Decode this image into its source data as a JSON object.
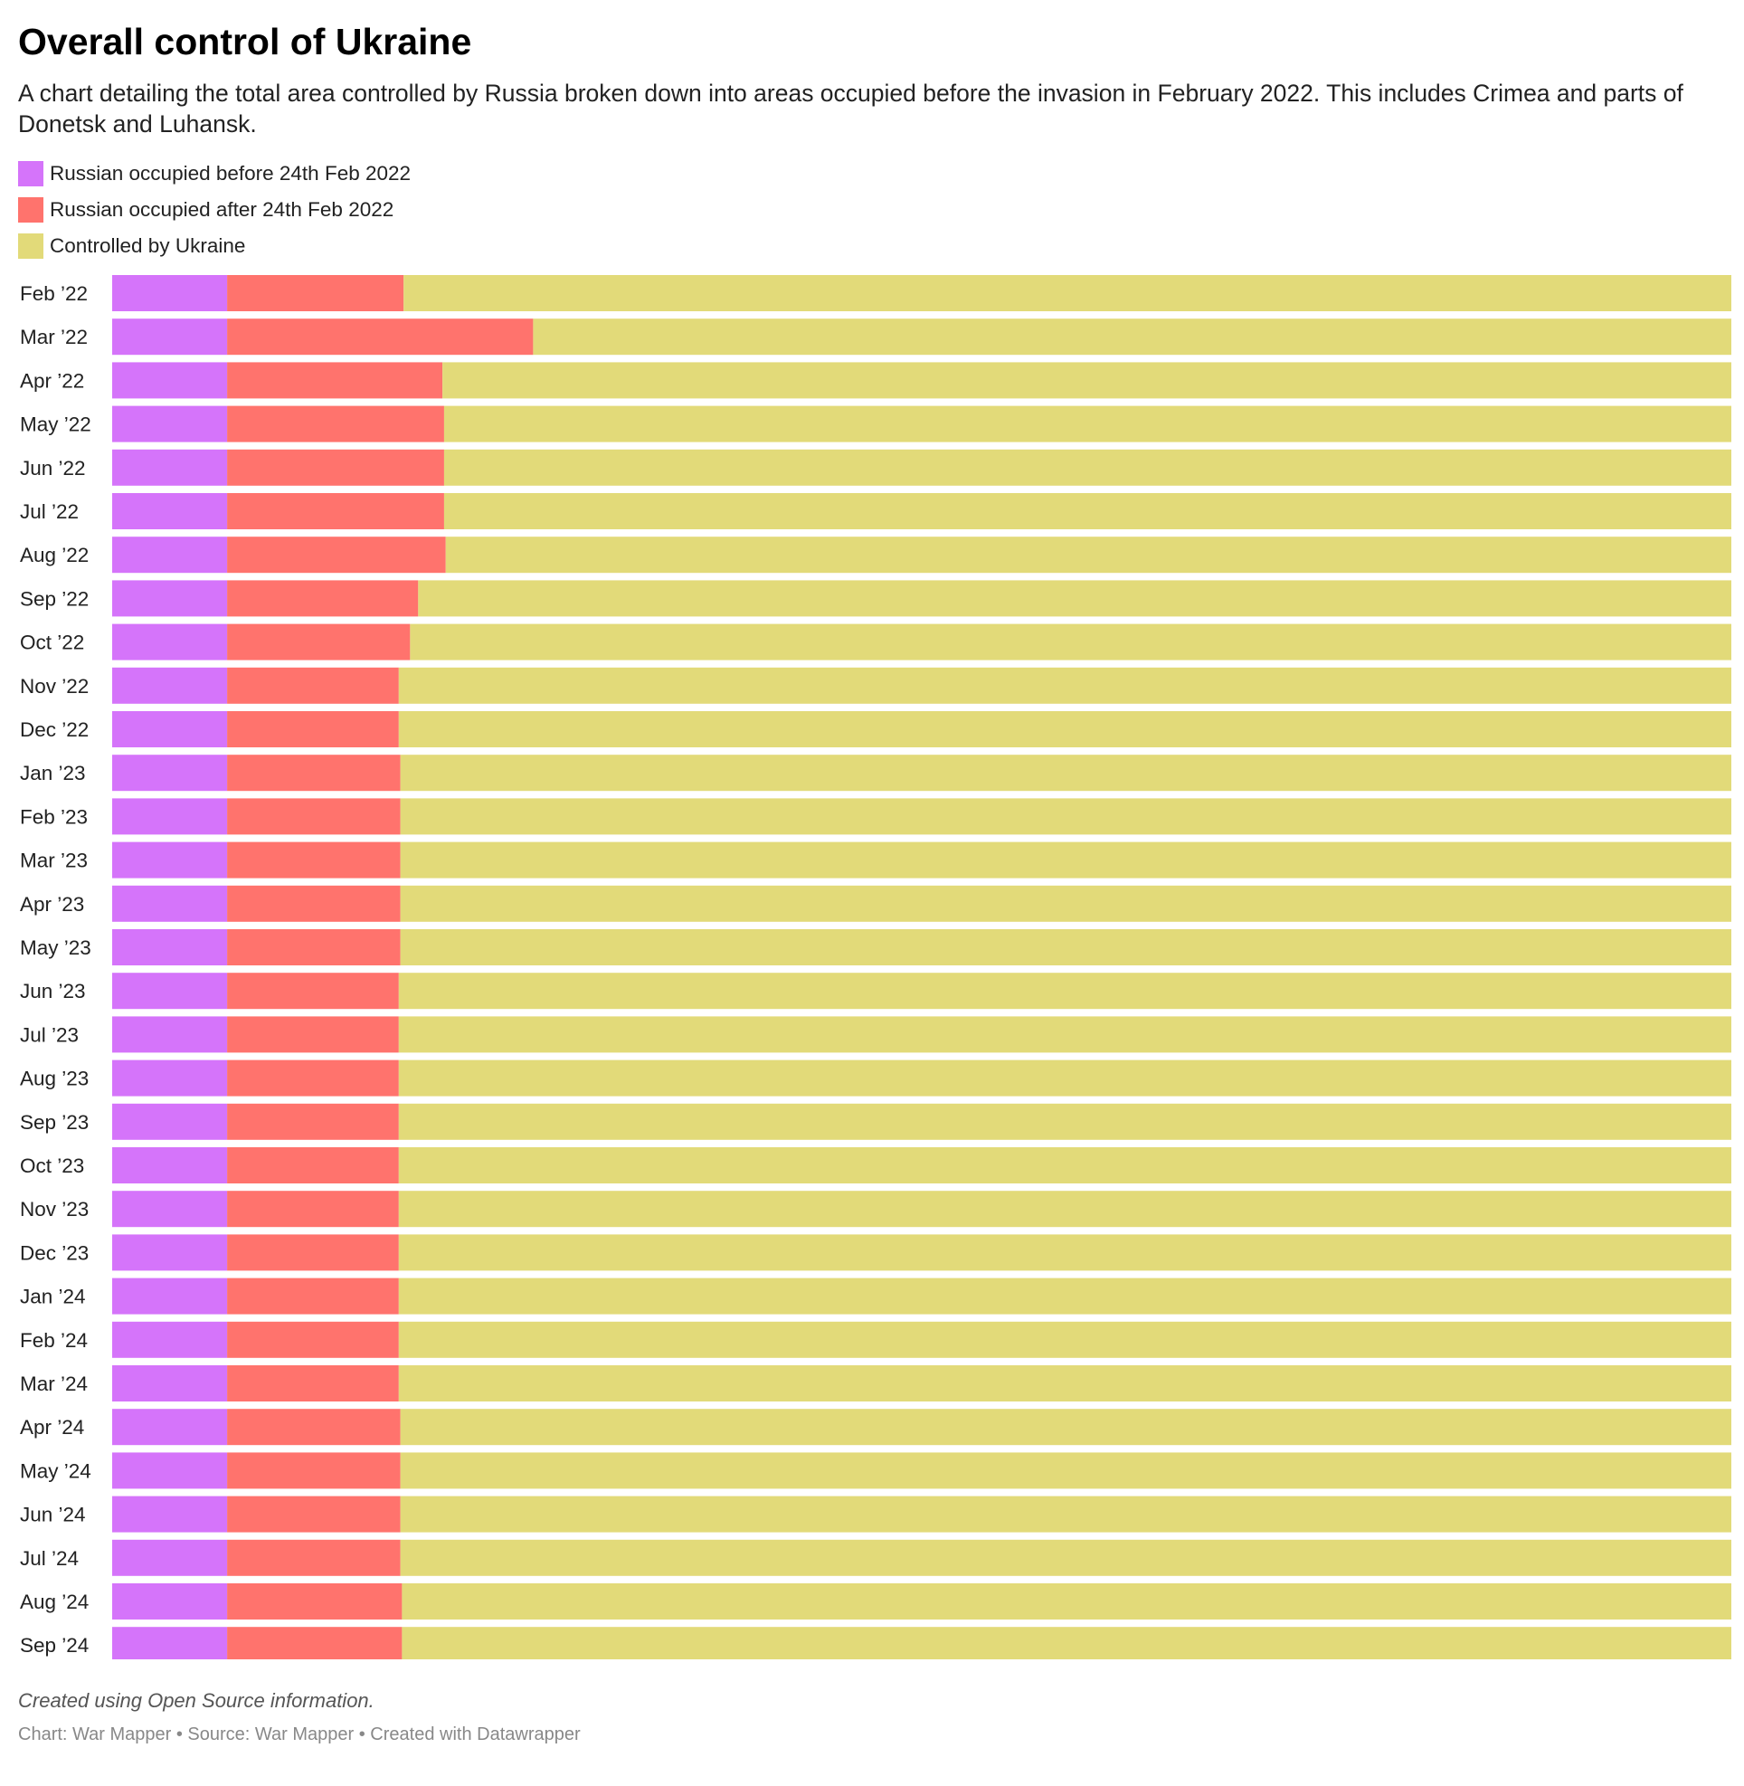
{
  "chart_data": {
    "type": "bar",
    "stacked": true,
    "orientation": "horizontal",
    "unit": "percent",
    "title": "Overall control of Ukraine",
    "subtitle": "A chart detailing the total area controlled by Russia broken down into areas occupied before the invasion in February 2022. This includes Crimea and parts of Donetsk and Luhansk.",
    "categories": [
      "Feb ’22",
      "Mar ’22",
      "Apr ’22",
      "May ’22",
      "Jun ’22",
      "Jul ’22",
      "Aug ’22",
      "Sep ’22",
      "Oct ’22",
      "Nov ’22",
      "Dec ’22",
      "Jan ’23",
      "Feb ’23",
      "Mar ’23",
      "Apr ’23",
      "May ’23",
      "Jun ’23",
      "Jul ’23",
      "Aug ’23",
      "Sep ’23",
      "Oct ’23",
      "Nov ’23",
      "Dec ’23",
      "Jan ’24",
      "Feb ’24",
      "Mar ’24",
      "Apr ’24",
      "May ’24",
      "Jun ’24",
      "Jul ’24",
      "Aug ’24",
      "Sep ’24"
    ],
    "series": [
      {
        "name": "Russian occupied before 24th Feb 2022",
        "color": "#d574fa",
        "values": [
          7.1,
          7.1,
          7.1,
          7.1,
          7.1,
          7.1,
          7.1,
          7.1,
          7.1,
          7.1,
          7.1,
          7.1,
          7.1,
          7.1,
          7.1,
          7.1,
          7.1,
          7.1,
          7.1,
          7.1,
          7.1,
          7.1,
          7.1,
          7.1,
          7.1,
          7.1,
          7.1,
          7.1,
          7.1,
          7.1,
          7.1,
          7.1
        ]
      },
      {
        "name": "Russian occupied after 24th Feb 2022",
        "color": "#ff736d",
        "values": [
          10.9,
          18.9,
          13.3,
          13.4,
          13.4,
          13.4,
          13.5,
          11.8,
          11.3,
          10.6,
          10.6,
          10.7,
          10.7,
          10.7,
          10.7,
          10.7,
          10.6,
          10.6,
          10.6,
          10.6,
          10.6,
          10.6,
          10.6,
          10.6,
          10.6,
          10.6,
          10.7,
          10.7,
          10.7,
          10.7,
          10.8,
          10.8
        ]
      },
      {
        "name": "Controlled by Ukraine",
        "color": "#e2da79",
        "values": [
          82.0,
          74.0,
          79.6,
          79.5,
          79.5,
          79.5,
          79.4,
          81.1,
          81.6,
          82.3,
          82.3,
          82.2,
          82.2,
          82.2,
          82.2,
          82.2,
          82.3,
          82.3,
          82.3,
          82.3,
          82.3,
          82.3,
          82.3,
          82.3,
          82.3,
          82.3,
          82.2,
          82.2,
          82.2,
          82.2,
          82.1,
          82.1
        ]
      }
    ],
    "xlim": [
      0,
      100
    ],
    "grid": false,
    "legend_position": "top-left"
  },
  "notes": "Created using Open Source information.",
  "footer": "Chart: War Mapper • Source: War Mapper • Created with Datawrapper"
}
